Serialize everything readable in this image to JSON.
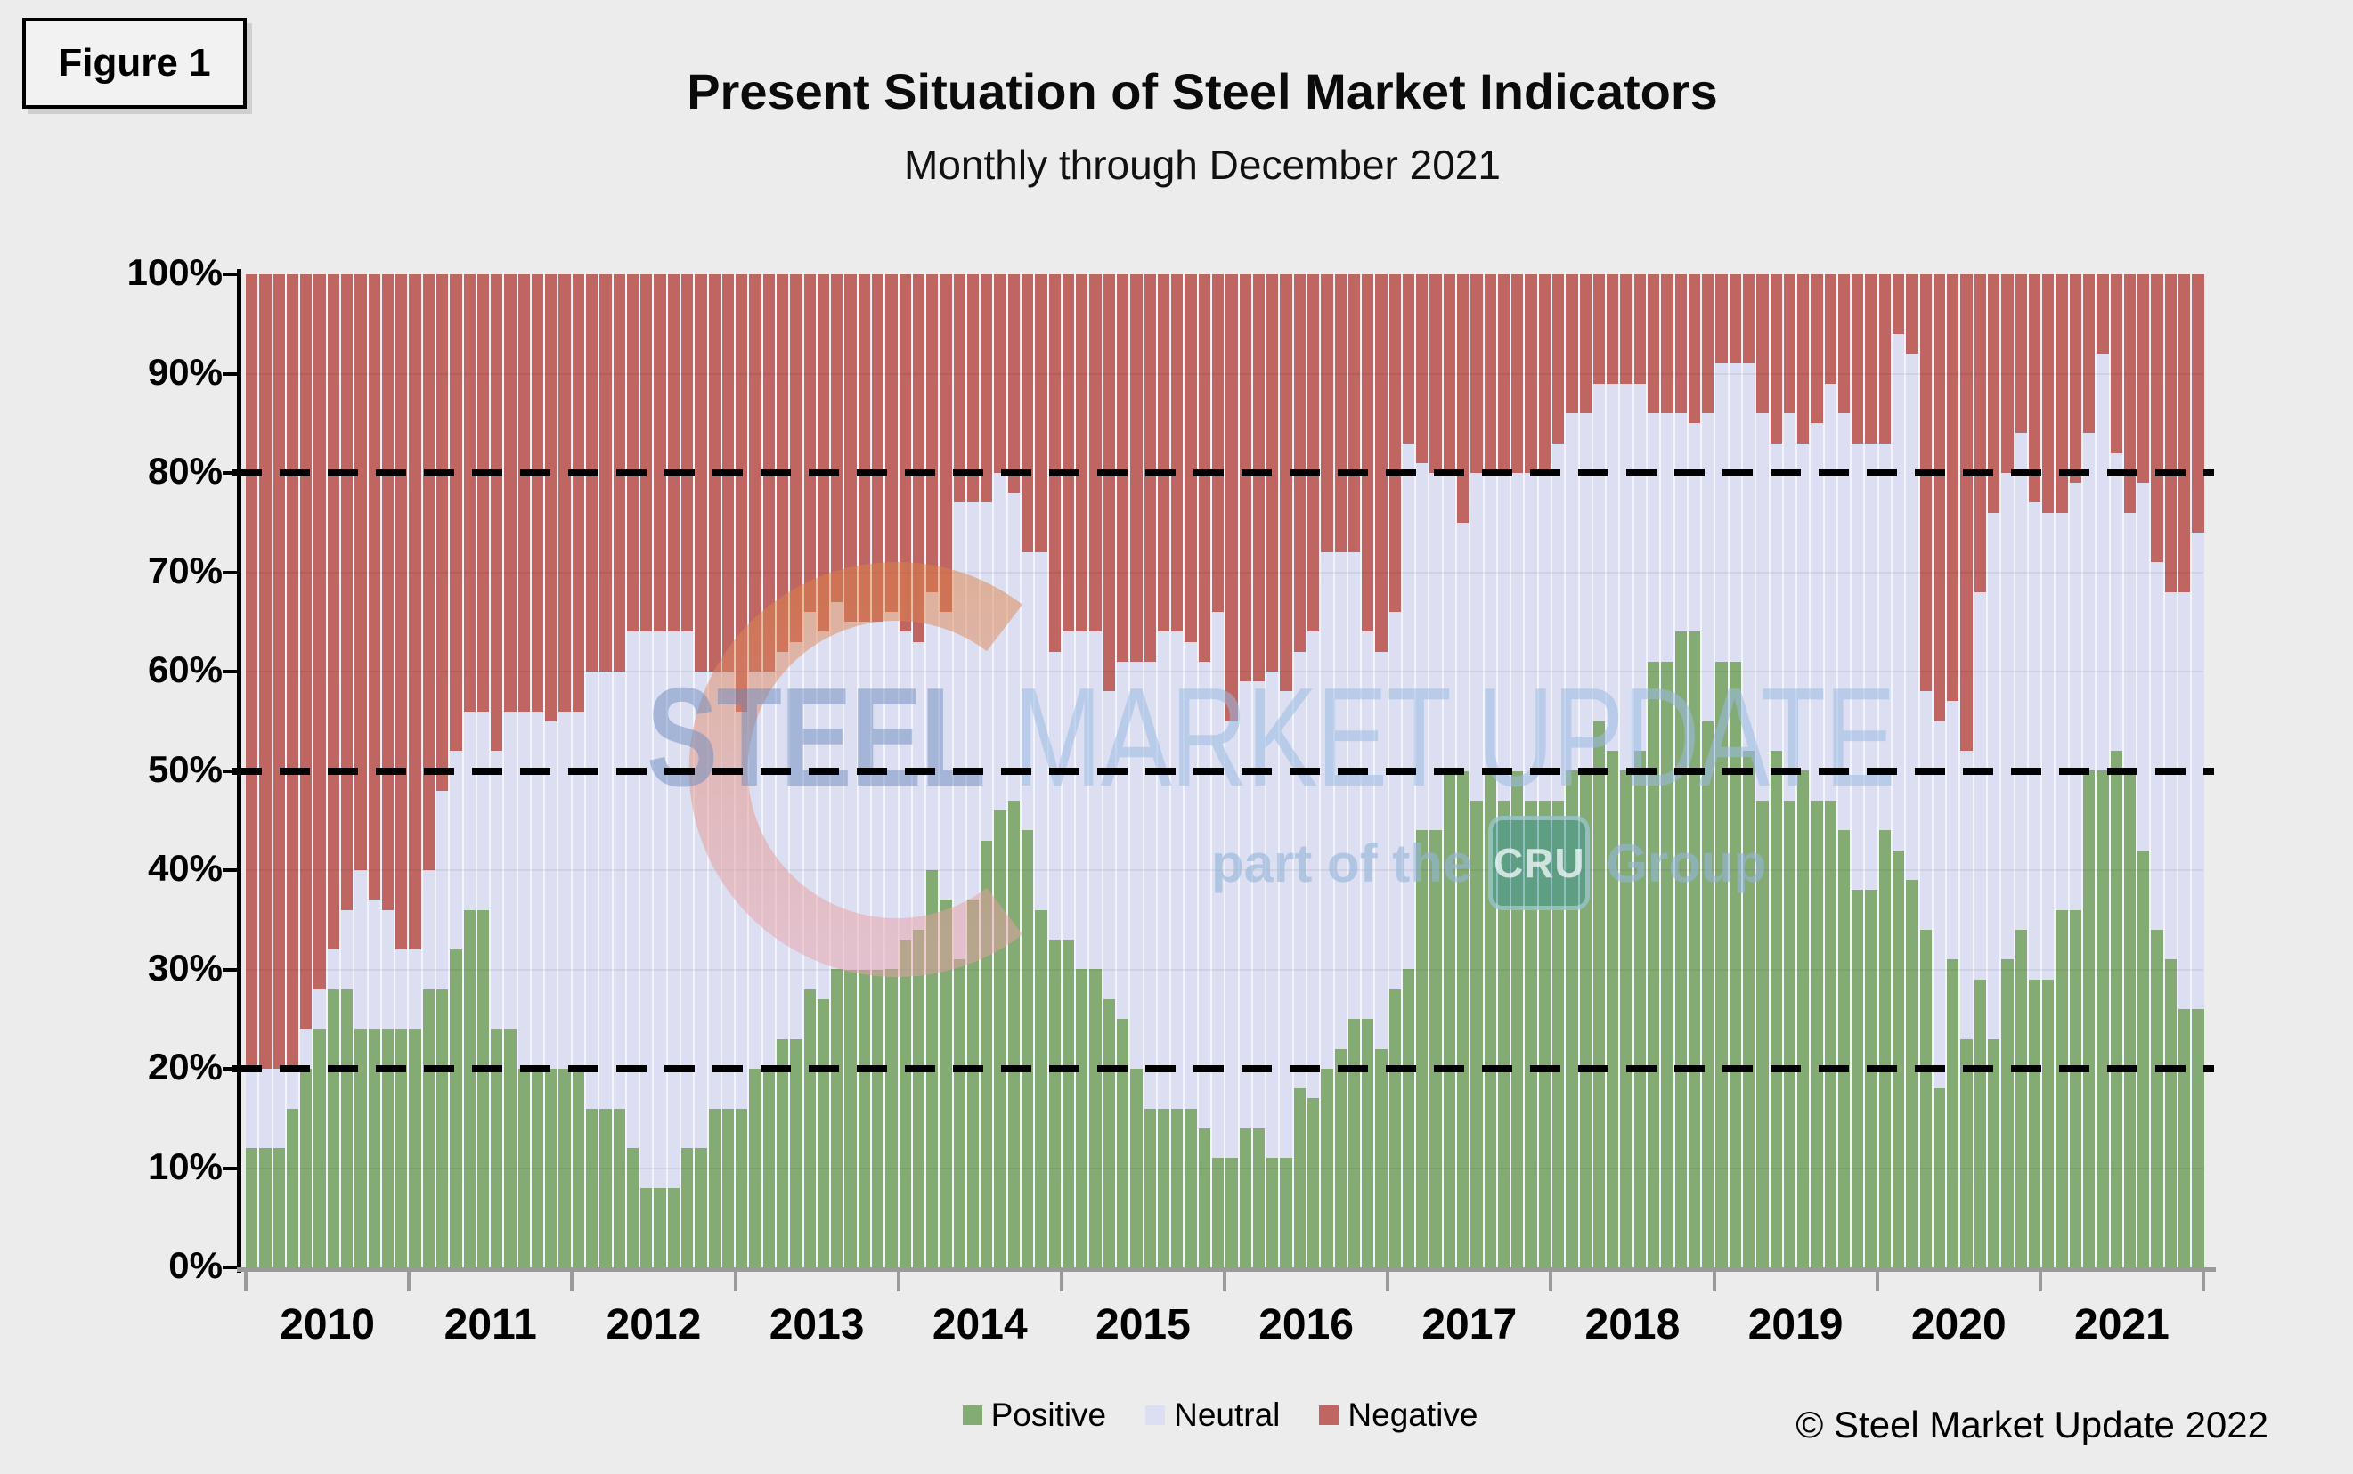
{
  "figure_label": "Figure 1",
  "header": {
    "title": "Present Situation of Steel Market Indicators",
    "subtitle": "Monthly through December 2021"
  },
  "footer": {
    "copyright": "© Steel Market Update 2022"
  },
  "watermark": {
    "brand_bold": "STEEL",
    "brand_rest": " MARKET UPDATE",
    "tagline_prefix": "part of the",
    "tagline_box": "CRU",
    "tagline_suffix": "Group"
  },
  "chart_data": {
    "type": "bar",
    "variant": "100-percent-stacked-monthly",
    "title": "Present Situation of Steel Market Indicators",
    "subtitle": "Monthly through December 2021",
    "legend_position": "bottom-center",
    "grid": "subtle-horizontal",
    "background_color": "#dcdff2",
    "page_background": "#ececec",
    "x_years": [
      2010,
      2011,
      2012,
      2013,
      2014,
      2015,
      2016,
      2017,
      2018,
      2019,
      2020,
      2021
    ],
    "months_per_year": 12,
    "ylim": [
      0,
      100
    ],
    "y_tick_step": 10,
    "y_tick_labels": [
      "0%",
      "10%",
      "20%",
      "30%",
      "40%",
      "50%",
      "60%",
      "70%",
      "80%",
      "90%",
      "100%"
    ],
    "dashed_reference_lines": [
      20,
      50,
      80
    ],
    "series": [
      {
        "name": "Positive",
        "color": "#85ab75",
        "values": [
          12,
          12,
          12,
          16,
          20,
          24,
          28,
          28,
          24,
          24,
          24,
          24,
          24,
          28,
          28,
          32,
          36,
          36,
          24,
          24,
          20,
          20,
          20,
          20,
          20,
          16,
          16,
          16,
          12,
          8,
          8,
          8,
          12,
          12,
          16,
          16,
          16,
          20,
          20,
          23,
          23,
          28,
          27,
          30,
          30,
          30,
          30,
          30,
          33,
          34,
          40,
          37,
          31,
          37,
          43,
          46,
          47,
          44,
          36,
          33,
          33,
          30,
          30,
          27,
          25,
          20,
          16,
          16,
          16,
          16,
          14,
          11,
          11,
          14,
          14,
          11,
          11,
          18,
          17,
          20,
          22,
          25,
          25,
          22,
          28,
          30,
          44,
          44,
          50,
          50,
          47,
          50,
          47,
          50,
          47,
          47,
          47,
          50,
          50,
          55,
          52,
          50,
          52,
          61,
          61,
          64,
          64,
          55,
          61,
          61,
          52,
          47,
          52,
          47,
          50,
          47,
          47,
          44,
          38,
          38,
          44,
          42,
          39,
          34,
          18,
          31,
          23,
          29,
          23,
          31,
          34,
          29,
          29,
          36,
          36,
          50,
          50,
          52,
          50,
          42,
          34,
          31,
          26,
          26
        ]
      },
      {
        "name": "Neutral",
        "color": "#dcdff2",
        "values": [
          8,
          8,
          8,
          4,
          4,
          4,
          4,
          8,
          16,
          13,
          12,
          8,
          8,
          12,
          20,
          20,
          20,
          20,
          28,
          32,
          36,
          36,
          35,
          36,
          36,
          44,
          44,
          44,
          52,
          56,
          56,
          56,
          52,
          48,
          44,
          44,
          40,
          40,
          40,
          39,
          40,
          38,
          37,
          37,
          35,
          35,
          35,
          36,
          31,
          29,
          28,
          29,
          46,
          40,
          34,
          34,
          31,
          28,
          36,
          29,
          31,
          34,
          34,
          31,
          36,
          41,
          45,
          48,
          48,
          47,
          47,
          55,
          44,
          45,
          45,
          49,
          47,
          44,
          47,
          52,
          50,
          47,
          39,
          40,
          38,
          53,
          37,
          36,
          30,
          25,
          33,
          30,
          33,
          30,
          33,
          33,
          36,
          36,
          36,
          34,
          37,
          39,
          37,
          25,
          25,
          22,
          21,
          31,
          30,
          30,
          39,
          39,
          31,
          39,
          33,
          38,
          42,
          42,
          45,
          45,
          39,
          52,
          53,
          24,
          37,
          26,
          29,
          39,
          53,
          49,
          50,
          48,
          47,
          40,
          43,
          34,
          42,
          30,
          26,
          37,
          37,
          37,
          42,
          48
        ]
      },
      {
        "name": "Negative",
        "color": "#bf6562",
        "values": [
          80,
          80,
          80,
          80,
          76,
          72,
          68,
          64,
          60,
          63,
          64,
          68,
          68,
          60,
          52,
          48,
          44,
          44,
          48,
          44,
          44,
          44,
          45,
          44,
          44,
          40,
          40,
          40,
          36,
          36,
          36,
          36,
          36,
          40,
          40,
          40,
          44,
          40,
          40,
          38,
          37,
          34,
          36,
          33,
          35,
          35,
          35,
          34,
          36,
          37,
          32,
          34,
          23,
          23,
          23,
          20,
          22,
          28,
          28,
          38,
          36,
          36,
          36,
          42,
          39,
          39,
          39,
          36,
          36,
          37,
          39,
          34,
          45,
          41,
          41,
          40,
          42,
          38,
          36,
          28,
          28,
          28,
          36,
          38,
          34,
          17,
          19,
          20,
          20,
          25,
          20,
          20,
          20,
          20,
          20,
          20,
          17,
          14,
          14,
          11,
          11,
          11,
          11,
          14,
          14,
          14,
          15,
          14,
          9,
          9,
          9,
          14,
          17,
          14,
          17,
          15,
          11,
          14,
          17,
          17,
          17,
          6,
          8,
          42,
          45,
          43,
          48,
          32,
          24,
          20,
          16,
          23,
          24,
          24,
          21,
          16,
          8,
          18,
          24,
          21,
          29,
          32,
          32,
          26
        ]
      }
    ]
  }
}
